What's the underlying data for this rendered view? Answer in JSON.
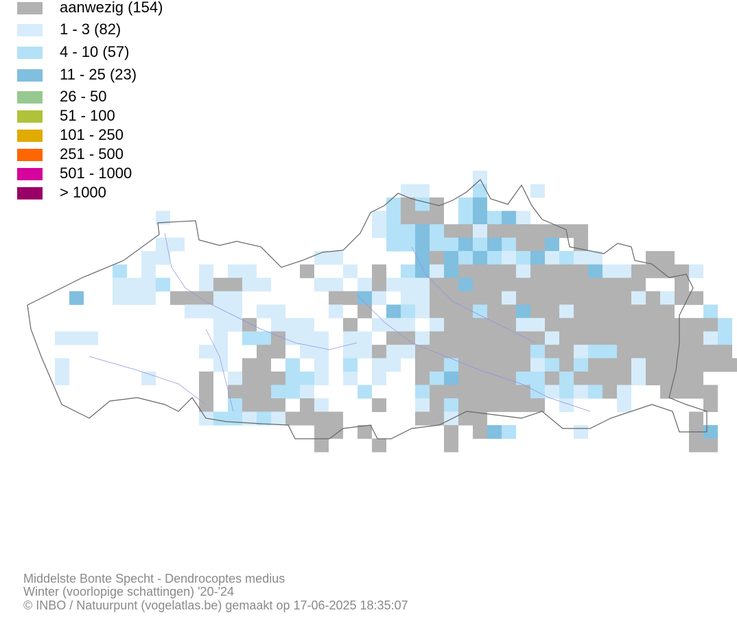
{
  "legend": [
    {
      "label": "aanwezig (154)",
      "color": "#b2b2b2"
    },
    {
      "label": "1 - 3 (82)",
      "color": "#d6ecfa"
    },
    {
      "label": "4 - 10 (57)",
      "color": "#b3e1f7"
    },
    {
      "label": "11 - 25 (23)",
      "color": "#80bfdf"
    },
    {
      "label": "26 - 50",
      "color": "#96c990"
    },
    {
      "label": "51 - 100",
      "color": "#b0c23a"
    },
    {
      "label": "101 - 250",
      "color": "#e0aa00"
    },
    {
      "label": "251 - 500",
      "color": "#ff6600"
    },
    {
      "label": "501 - 1000",
      "color": "#d4049d"
    },
    {
      "label": "> 1000",
      "color": "#990066"
    }
  ],
  "footer": {
    "line1": "Middelste Bonte Specht - Dendrocoptes medius",
    "line2": "Winter (voorlopige schattingen) '20-'24",
    "line3": "© INBO / Natuurpunt (vogelatlas.be) gemaakt op 17-06-2025 18:35:07"
  }
}
